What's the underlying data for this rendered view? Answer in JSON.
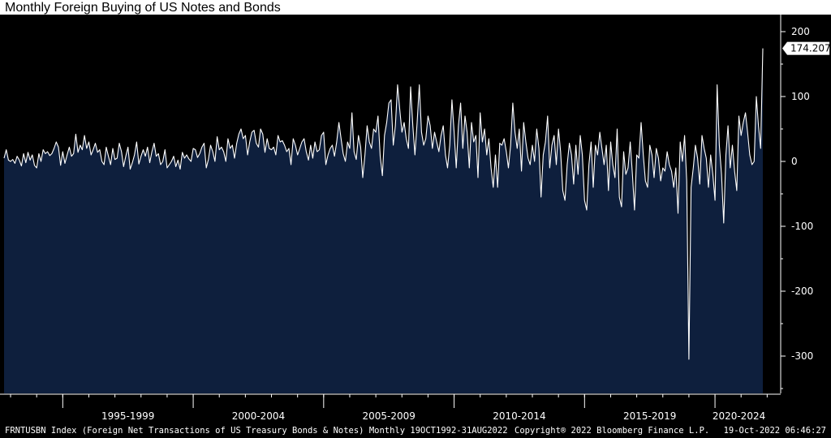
{
  "chart_data": {
    "type": "area",
    "title": "Monthly Foreign Buying of US Notes and Bonds",
    "xlabel": "",
    "ylabel": "",
    "ylim": [
      -360,
      222
    ],
    "yticks": [
      200,
      100,
      0,
      -100,
      -200,
      -300
    ],
    "x_range": [
      "1992-10",
      "2022-08"
    ],
    "period_labels": [
      "1995-1999",
      "2000-2004",
      "2005-2009",
      "2010-2014",
      "2015-2019",
      "2020-2024"
    ],
    "last_value_label": "174.207",
    "footer_left": "FRNTUSBN Index (Foreign Net Transactions of US Treasury Bonds & Notes) Monthly 19OCT1992-31AUG2022",
    "footer_center": "Copyright® 2022 Bloomberg Finance L.P.",
    "footer_right": "19-Oct-2022 06:46:27",
    "grid": false,
    "legend": "none",
    "colors": {
      "background": "#000000",
      "area": "#0e1f3d",
      "line": "#ffffff"
    },
    "series": [
      {
        "values": [
          5,
          18,
          2,
          0,
          3,
          -3,
          8,
          2,
          -7,
          12,
          -2,
          14,
          2,
          10,
          -6,
          -10,
          12,
          0,
          18,
          12,
          15,
          9,
          12,
          20,
          30,
          22,
          -6,
          15,
          -3,
          10,
          22,
          8,
          12,
          42,
          14,
          25,
          18,
          40,
          20,
          30,
          10,
          18,
          28,
          14,
          18,
          0,
          -5,
          22,
          8,
          -5,
          20,
          3,
          5,
          28,
          15,
          -8,
          8,
          22,
          -12,
          -2,
          10,
          30,
          -4,
          8,
          18,
          8,
          22,
          -2,
          15,
          28,
          8,
          12,
          -5,
          0,
          18,
          -10,
          -5,
          0,
          8,
          -8,
          2,
          -12,
          14,
          5,
          10,
          4,
          0,
          20,
          18,
          6,
          12,
          22,
          28,
          -10,
          3,
          25,
          15,
          0,
          38,
          18,
          22,
          15,
          0,
          35,
          20,
          25,
          5,
          28,
          42,
          50,
          35,
          40,
          10,
          30,
          45,
          48,
          28,
          22,
          50,
          42,
          14,
          35,
          20,
          18,
          22,
          10,
          40,
          30,
          32,
          25,
          15,
          20,
          -5,
          35,
          25,
          10,
          20,
          30,
          35,
          15,
          2,
          25,
          5,
          30,
          15,
          18,
          40,
          45,
          -5,
          10,
          20,
          25,
          8,
          30,
          60,
          35,
          12,
          0,
          30,
          20,
          75,
          15,
          3,
          40,
          22,
          -25,
          10,
          55,
          30,
          20,
          50,
          45,
          70,
          8,
          -22,
          40,
          60,
          90,
          95,
          25,
          55,
          118,
          80,
          45,
          60,
          35,
          20,
          115,
          55,
          10,
          60,
          118,
          45,
          25,
          35,
          70,
          55,
          20,
          45,
          30,
          15,
          40,
          55,
          10,
          -10,
          25,
          95,
          45,
          -10,
          55,
          90,
          20,
          70,
          45,
          -10,
          60,
          30,
          40,
          -25,
          75,
          30,
          50,
          10,
          35,
          -10,
          -40,
          10,
          -40,
          28,
          25,
          35,
          15,
          -10,
          25,
          90,
          45,
          20,
          50,
          -15,
          60,
          30,
          5,
          -5,
          25,
          0,
          50,
          20,
          -55,
          10,
          30,
          70,
          -10,
          25,
          40,
          -5,
          50,
          15,
          -45,
          -60,
          -5,
          28,
          10,
          -35,
          25,
          -20,
          40,
          10,
          -60,
          -75,
          -5,
          30,
          -40,
          25,
          10,
          45,
          20,
          -5,
          25,
          -45,
          30,
          -5,
          -25,
          50,
          -55,
          -70,
          15,
          -20,
          -10,
          30,
          -20,
          -75,
          10,
          5,
          60,
          10,
          -30,
          -40,
          25,
          10,
          -25,
          20,
          5,
          -30,
          -10,
          -15,
          15,
          -5,
          -15,
          -40,
          -10,
          -80,
          30,
          0,
          40,
          -30,
          -305,
          -40,
          -10,
          25,
          5,
          -35,
          40,
          20,
          5,
          -40,
          10,
          -20,
          -60,
          118,
          25,
          -20,
          -95,
          10,
          55,
          -10,
          25,
          -15,
          -45,
          70,
          40,
          60,
          75,
          45,
          10,
          -5,
          0,
          100,
          55,
          20,
          174.207
        ]
      }
    ]
  }
}
